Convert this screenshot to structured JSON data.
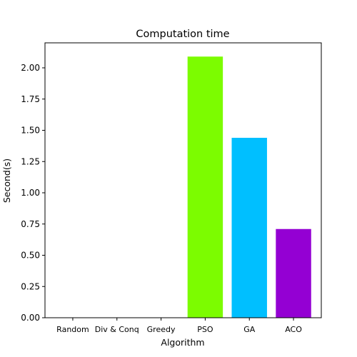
{
  "chart_data": {
    "type": "bar",
    "title": "Computation time",
    "xlabel": "Algorithm",
    "ylabel": "Second(s)",
    "categories": [
      "Random",
      "Div & Conq",
      "Greedy",
      "PSO",
      "GA",
      "ACO"
    ],
    "values": [
      0.0,
      0.0,
      0.0,
      2.09,
      1.44,
      0.71
    ],
    "colors": [
      "#7cfc00",
      "#7cfc00",
      "#7cfc00",
      "#7cfc00",
      "#00bfff",
      "#9400d3"
    ],
    "ylim": [
      0,
      2.2
    ],
    "yticks": [
      "0.00",
      "0.25",
      "0.50",
      "0.75",
      "1.00",
      "1.25",
      "1.50",
      "1.75",
      "2.00"
    ],
    "grid": false,
    "legend": "none"
  }
}
